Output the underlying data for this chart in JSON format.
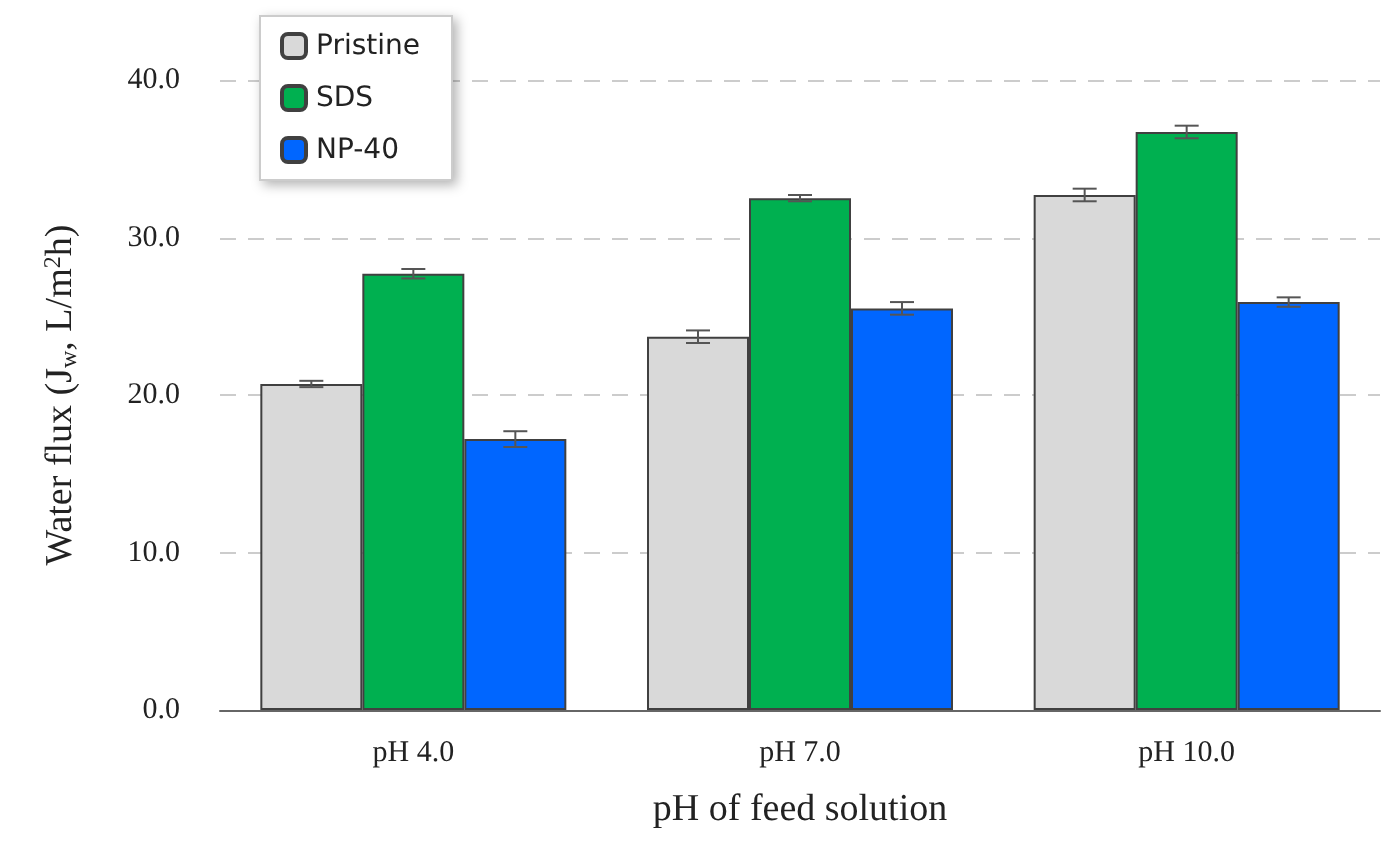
{
  "chart_data": {
    "type": "bar",
    "xlabel": "pH of feed solution",
    "ylabel": "Water flux (J$_{w}$, L/m$^{2}$h)",
    "categories": [
      "pH 4.0",
      "pH 7.0",
      "pH 10.0"
    ],
    "series": [
      {
        "name": "Pristine",
        "color": "#d9d9d9",
        "values": [
          20.7,
          23.7,
          32.7
        ],
        "errors": [
          0.2,
          0.4,
          0.4
        ]
      },
      {
        "name": "SDS",
        "color": "#00b050",
        "values": [
          27.7,
          32.5,
          36.7
        ],
        "errors": [
          0.3,
          0.2,
          0.4
        ]
      },
      {
        "name": "NP-40",
        "color": "#0066ff",
        "values": [
          17.2,
          25.5,
          25.9
        ],
        "errors": [
          0.5,
          0.4,
          0.3
        ]
      }
    ],
    "ylim": [
      0,
      40
    ],
    "yticks": [
      {
        "value": 0,
        "label": "0.0"
      },
      {
        "value": 10,
        "label": "10.0"
      },
      {
        "value": 20,
        "label": "20.0"
      },
      {
        "value": 30,
        "label": "30.0"
      },
      {
        "value": 40,
        "label": "40.0"
      }
    ],
    "grid": "y",
    "legend": "top left"
  }
}
